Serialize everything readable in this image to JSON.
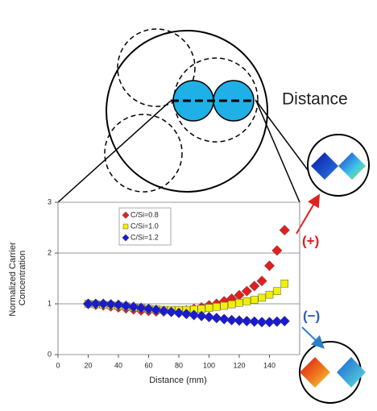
{
  "chart_data": {
    "type": "scatter",
    "xlabel": "Distance (mm)",
    "ylabel": [
      "Normalized Carrier",
      "Concentration"
    ],
    "annotations": [
      "Distance",
      "(+)",
      "(−)"
    ],
    "x": [
      20,
      25,
      30,
      35,
      40,
      45,
      50,
      55,
      60,
      65,
      70,
      75,
      80,
      85,
      90,
      95,
      100,
      105,
      110,
      115,
      120,
      125,
      130,
      135,
      140,
      145,
      150
    ],
    "series": [
      {
        "name": "C/Si=0.8",
        "color": "#e02020",
        "marker": "diamond",
        "values": [
          1.0,
          0.98,
          0.97,
          0.95,
          0.93,
          0.91,
          0.89,
          0.87,
          0.86,
          0.85,
          0.85,
          0.85,
          0.86,
          0.87,
          0.9,
          0.93,
          0.97,
          1.0,
          1.05,
          1.1,
          1.17,
          1.25,
          1.35,
          1.45,
          1.75,
          2.05,
          2.45
        ]
      },
      {
        "name": "C/Si=1.0",
        "color": "#f0f000",
        "marker": "square",
        "values": [
          1.0,
          0.99,
          0.98,
          0.97,
          0.96,
          0.95,
          0.93,
          0.92,
          0.9,
          0.89,
          0.88,
          0.88,
          0.88,
          0.88,
          0.89,
          0.9,
          0.92,
          0.94,
          0.96,
          0.99,
          1.02,
          1.05,
          1.08,
          1.12,
          1.18,
          1.25,
          1.4
        ]
      },
      {
        "name": "C/Si=1.2",
        "color": "#1a1ad0",
        "marker": "diamond",
        "values": [
          1.0,
          1.0,
          1.0,
          0.99,
          0.98,
          0.96,
          0.94,
          0.92,
          0.9,
          0.88,
          0.86,
          0.84,
          0.82,
          0.8,
          0.78,
          0.76,
          0.74,
          0.72,
          0.7,
          0.68,
          0.67,
          0.66,
          0.65,
          0.64,
          0.64,
          0.65,
          0.66
        ]
      }
    ],
    "xlim": [
      0,
      160
    ],
    "xticks": [
      0,
      20,
      40,
      60,
      80,
      100,
      120,
      140
    ],
    "ylim": [
      0,
      3
    ],
    "yticks": [
      0,
      1,
      2,
      3
    ],
    "grid": true,
    "legend": "upper left"
  }
}
